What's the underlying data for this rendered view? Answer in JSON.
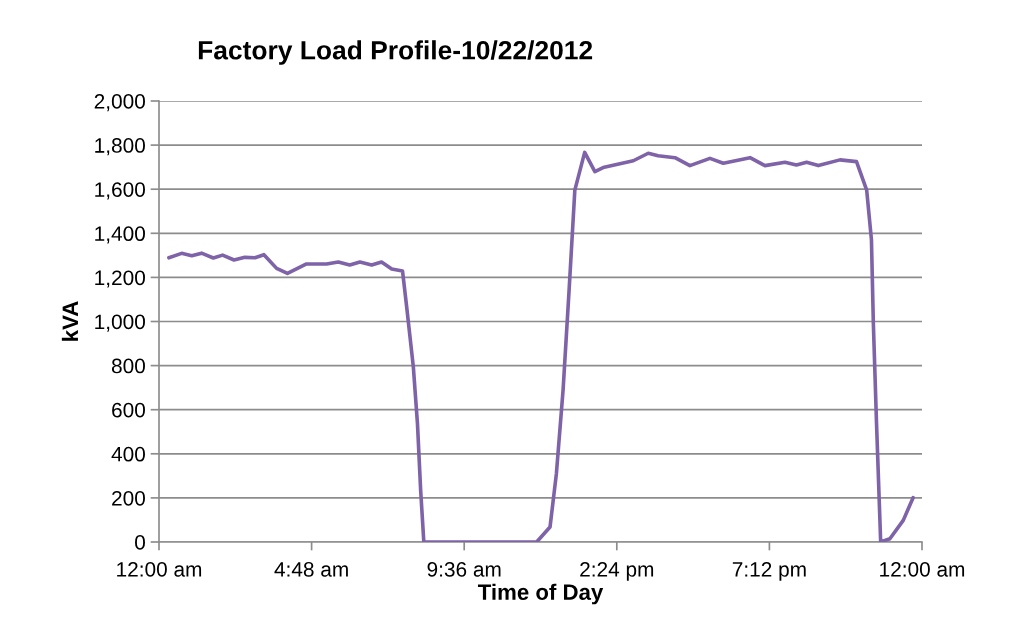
{
  "chart_data": {
    "type": "line",
    "title": "Factory Load Profile-10/22/2012",
    "xlabel": "Time of Day",
    "ylabel": "kVA",
    "series": [
      {
        "color": "#7f63a8",
        "x": [
          0.31,
          0.71,
          1.03,
          1.34,
          1.71,
          2.0,
          2.36,
          2.7,
          3.02,
          3.3,
          3.7,
          4.04,
          4.64,
          5.27,
          5.64,
          6.0,
          6.32,
          6.69,
          7.0,
          7.32,
          7.66,
          7.79,
          8.0,
          8.13,
          8.23,
          8.33,
          10.0,
          11.88,
          12.3,
          12.5,
          12.71,
          12.9,
          13.08,
          13.39,
          13.71,
          13.97,
          14.92,
          15.39,
          15.7,
          16.23,
          16.7,
          17.33,
          17.75,
          18.59,
          19.06,
          19.69,
          20.05,
          20.37,
          20.74,
          21.42,
          21.94,
          22.26,
          22.41,
          22.47,
          22.57,
          22.7,
          22.99,
          23.41,
          23.72
        ],
        "values": [
          1289,
          1309,
          1298,
          1310,
          1288,
          1301,
          1279,
          1291,
          1289,
          1303,
          1241,
          1218,
          1261,
          1261,
          1270,
          1256,
          1270,
          1256,
          1270,
          1238,
          1229,
          1067,
          794,
          537,
          235,
          0,
          0,
          0,
          68,
          310,
          689,
          1143,
          1596,
          1767,
          1680,
          1698,
          1729,
          1763,
          1752,
          1743,
          1707,
          1740,
          1718,
          1743,
          1707,
          1722,
          1710,
          1722,
          1707,
          1733,
          1725,
          1596,
          1370,
          991,
          537,
          0,
          15,
          98,
          201
        ]
      }
    ],
    "xlim": [
      0,
      24
    ],
    "xticks": [
      {
        "value": 0,
        "label": "12:00 am"
      },
      {
        "value": 4.8,
        "label": "4:48 am"
      },
      {
        "value": 9.6,
        "label": "9:36 am"
      },
      {
        "value": 14.4,
        "label": "2:24 pm"
      },
      {
        "value": 19.2,
        "label": "7:12 pm"
      },
      {
        "value": 24,
        "label": "12:00 am"
      }
    ],
    "ylim": [
      0,
      2000
    ],
    "yticks": [
      {
        "value": 0,
        "label": "0"
      },
      {
        "value": 200,
        "label": "200"
      },
      {
        "value": 400,
        "label": "400"
      },
      {
        "value": 600,
        "label": "600"
      },
      {
        "value": 800,
        "label": "800"
      },
      {
        "value": 1000,
        "label": "1,000"
      },
      {
        "value": 1200,
        "label": "1,200"
      },
      {
        "value": 1400,
        "label": "1,400"
      },
      {
        "value": 1600,
        "label": "1,600"
      },
      {
        "value": 1800,
        "label": "1,800"
      },
      {
        "value": 2000,
        "label": "2,000"
      }
    ],
    "grid": "y",
    "legend": false,
    "marker": "none",
    "line_style": "solid"
  }
}
